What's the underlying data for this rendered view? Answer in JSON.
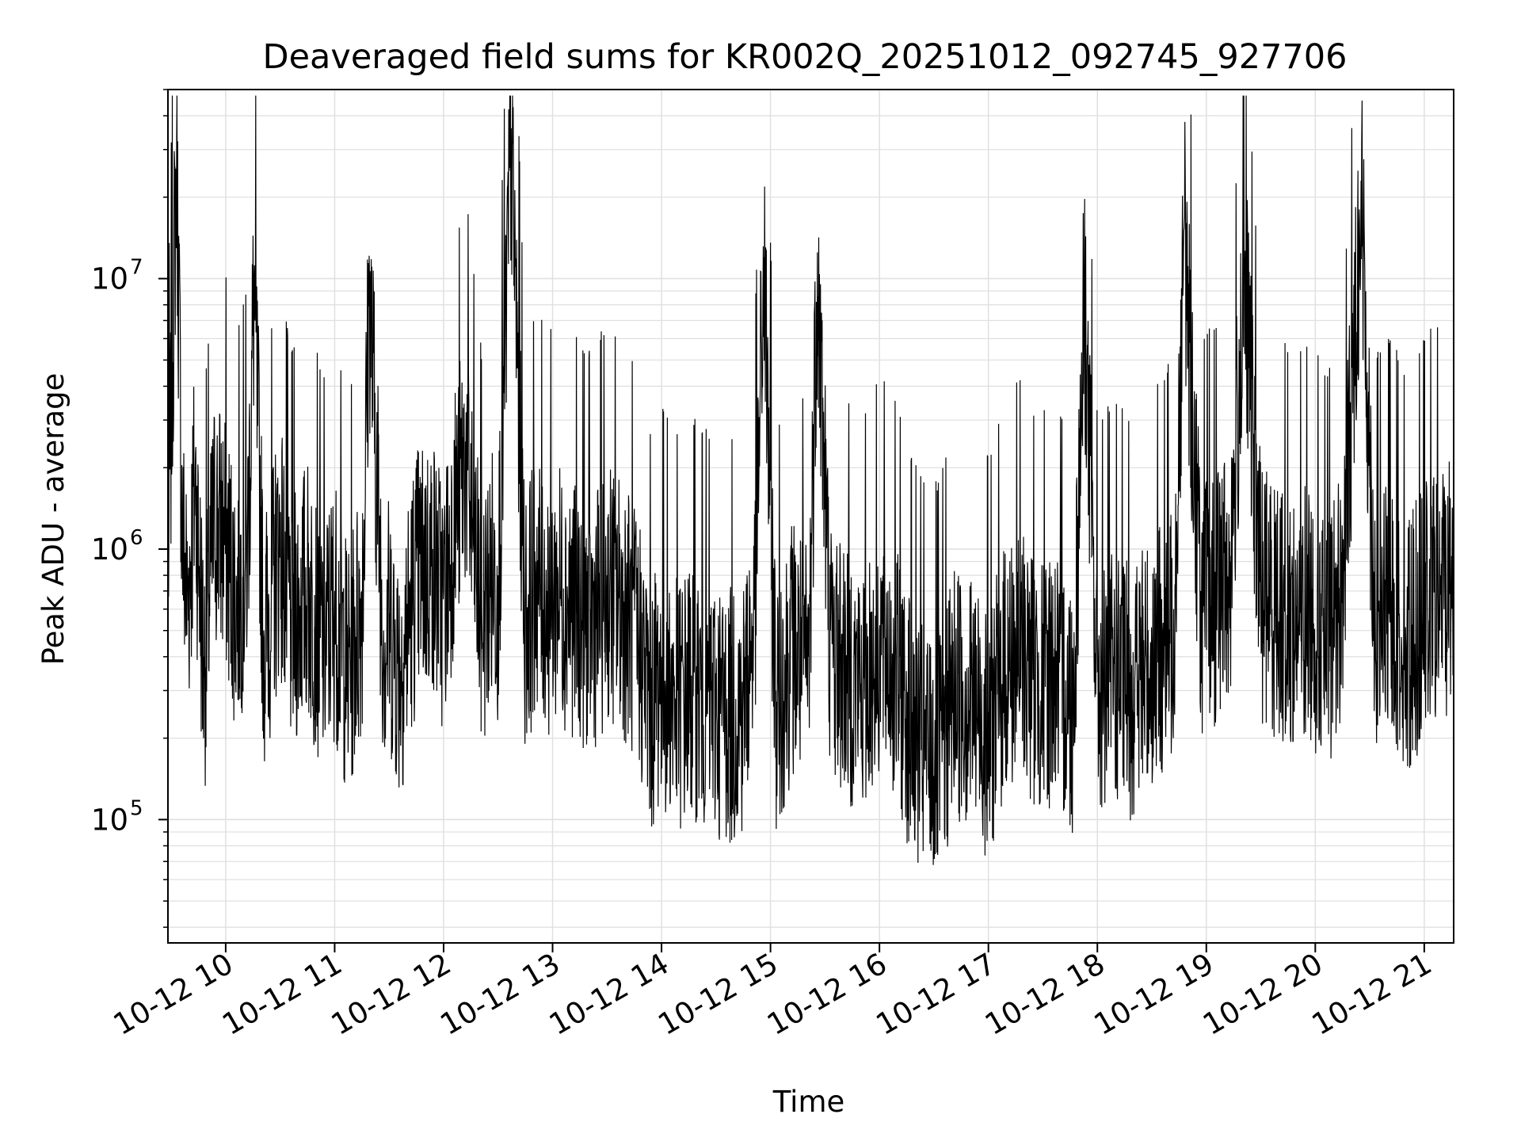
{
  "chart_data": {
    "type": "line",
    "title": "Deaveraged field sums for KR002Q_20251012_092745_927706",
    "xlabel": "Time",
    "ylabel": "Peak ADU - average",
    "yscale": "log",
    "ylim": [
      35000,
      50000000
    ],
    "xlim_hours": [
      9.47,
      21.27
    ],
    "x_ticks": [
      {
        "hour": 10,
        "label": "10-12 10"
      },
      {
        "hour": 11,
        "label": "10-12 11"
      },
      {
        "hour": 12,
        "label": "10-12 12"
      },
      {
        "hour": 13,
        "label": "10-12 13"
      },
      {
        "hour": 14,
        "label": "10-12 14"
      },
      {
        "hour": 15,
        "label": "10-12 15"
      },
      {
        "hour": 16,
        "label": "10-12 16"
      },
      {
        "hour": 17,
        "label": "10-12 17"
      },
      {
        "hour": 18,
        "label": "10-12 18"
      },
      {
        "hour": 19,
        "label": "10-12 19"
      },
      {
        "hour": 20,
        "label": "10-12 20"
      },
      {
        "hour": 21,
        "label": "10-12 21"
      }
    ],
    "y_ticks": [
      {
        "value": 100000,
        "base": "10",
        "exp": "5"
      },
      {
        "value": 1000000,
        "base": "10",
        "exp": "6"
      },
      {
        "value": 10000000,
        "base": "10",
        "exp": "7"
      }
    ],
    "grid": true,
    "line_color": "#000000",
    "grid_color": "#e0e0e0",
    "series": [
      {
        "x_hours": [
          9.47,
          9.55,
          9.6,
          9.65,
          9.72,
          9.8,
          9.9,
          10.0,
          10.1,
          10.2,
          10.26,
          10.35,
          10.5,
          10.6,
          10.75,
          10.9,
          11.0,
          11.12,
          11.25,
          11.32,
          11.45,
          11.5,
          11.6,
          11.75,
          11.9,
          12.0,
          12.1,
          12.2,
          12.35,
          12.45,
          12.5,
          12.62,
          12.75,
          12.85,
          12.95,
          13.05,
          13.2,
          13.35,
          13.5,
          13.65,
          13.8,
          13.9,
          14.0,
          14.15,
          14.3,
          14.45,
          14.6,
          14.75,
          14.85,
          14.94,
          15.05,
          15.2,
          15.35,
          15.43,
          15.55,
          15.7,
          15.85,
          16.0,
          16.15,
          16.3,
          16.42,
          16.55,
          16.7,
          16.85,
          17.0,
          17.15,
          17.3,
          17.45,
          17.6,
          17.78,
          17.88,
          18.0,
          18.15,
          18.3,
          18.45,
          18.6,
          18.7,
          18.8,
          18.95,
          19.1,
          19.22,
          19.35,
          19.5,
          19.65,
          19.8,
          19.95,
          20.1,
          20.25,
          20.42,
          20.55,
          20.7,
          20.85,
          21.0,
          21.15,
          21.27
        ],
        "y_values": [
          900000,
          33000000,
          1300000,
          700000,
          2000000,
          400000,
          1500000,
          1200000,
          700000,
          1100000,
          10000000,
          500000,
          1200000,
          600000,
          800000,
          500000,
          700000,
          400000,
          700000,
          10000000,
          500000,
          600000,
          400000,
          900000,
          1000000,
          700000,
          1500000,
          2500000,
          600000,
          900000,
          800000,
          36000000,
          600000,
          900000,
          700000,
          800000,
          700000,
          600000,
          800000,
          700000,
          500000,
          300000,
          400000,
          300000,
          350000,
          300000,
          280000,
          300000,
          600000,
          12000000,
          300000,
          500000,
          400000,
          12500000,
          500000,
          400000,
          350000,
          500000,
          400000,
          250000,
          200000,
          200000,
          350000,
          300000,
          250000,
          400000,
          500000,
          350000,
          400000,
          300000,
          9800000,
          350000,
          400000,
          350000,
          400000,
          500000,
          600000,
          17000000,
          700000,
          800000,
          900000,
          12000000,
          800000,
          700000,
          600000,
          700000,
          500000,
          800000,
          23000000,
          600000,
          700000,
          500000,
          700000,
          800000,
          900000
        ]
      }
    ]
  }
}
